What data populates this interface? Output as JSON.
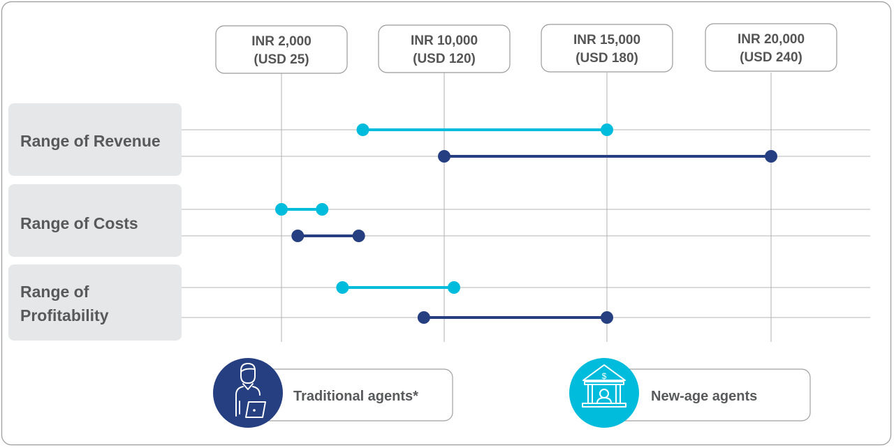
{
  "chart_data": {
    "type": "dumbbell",
    "title": "",
    "ticks": [
      {
        "value": 2000,
        "label_line1": "INR 2,000",
        "label_line2": "(USD 25)"
      },
      {
        "value": 10000,
        "label_line1": "INR 10,000",
        "label_line2": "(USD 120)"
      },
      {
        "value": 15000,
        "label_line1": "INR 15,000",
        "label_line2": "(USD 180)"
      },
      {
        "value": 20000,
        "label_line1": "INR 20,000",
        "label_line2": "(USD 240)"
      }
    ],
    "categories": [
      {
        "label_lines": [
          "Range of Revenue"
        ]
      },
      {
        "label_lines": [
          "Range of Costs"
        ]
      },
      {
        "label_lines": [
          "Range of",
          "Profitability"
        ]
      }
    ],
    "series": [
      {
        "name": "New-age agents",
        "color": "#00bcdc",
        "ranges": [
          [
            6000,
            15000
          ],
          [
            2000,
            4000
          ],
          [
            5000,
            10300
          ]
        ]
      },
      {
        "name": "Traditional agents*",
        "color": "#263f80",
        "ranges": [
          [
            10000,
            20000
          ],
          [
            2800,
            5800
          ],
          [
            9000,
            15000
          ]
        ]
      }
    ],
    "legend": [
      "Traditional agents*",
      "New-age agents"
    ],
    "legend_placement": "bottom"
  }
}
